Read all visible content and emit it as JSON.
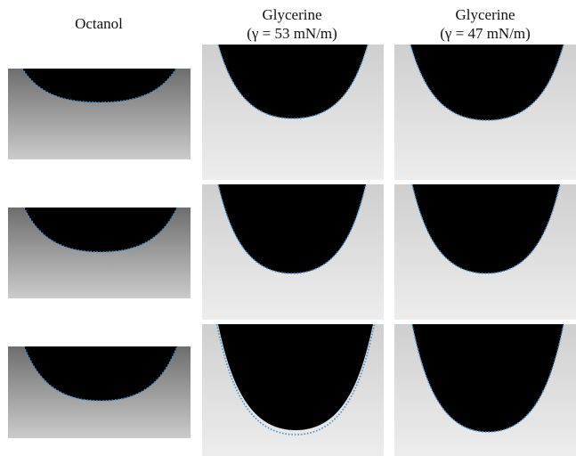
{
  "columns": [
    {
      "title": "Octanol"
    },
    {
      "title": "Glycerine",
      "subtitle": "(γ = 53 mN/m)"
    },
    {
      "title": "Glycerine",
      "subtitle": "(γ = 47 mN/m)"
    }
  ]
}
